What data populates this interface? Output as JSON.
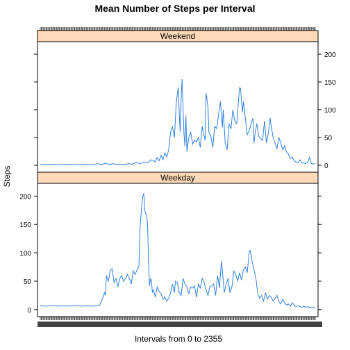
{
  "chart_data": {
    "type": "line",
    "title": "Mean Number of Steps per Interval",
    "xlabel": "Intervals from 0 to 2355",
    "ylabel": "Steps",
    "ylim": [
      -10,
      220
    ],
    "yticks": [
      0,
      50,
      100,
      150,
      200
    ],
    "x_categories": 288,
    "line_color": "#2f7fe6",
    "strip_color": "#ffdab9",
    "panels": [
      {
        "name": "Weekend",
        "points": [
          [
            0,
            1
          ],
          [
            4,
            2
          ],
          [
            8,
            1
          ],
          [
            12,
            2
          ],
          [
            16,
            1
          ],
          [
            20,
            1
          ],
          [
            24,
            2
          ],
          [
            28,
            1
          ],
          [
            32,
            2
          ],
          [
            36,
            1
          ],
          [
            40,
            1
          ],
          [
            45,
            2
          ],
          [
            50,
            1
          ],
          [
            56,
            1
          ],
          [
            60,
            3
          ],
          [
            64,
            1
          ],
          [
            68,
            4
          ],
          [
            72,
            1
          ],
          [
            76,
            3
          ],
          [
            80,
            1
          ],
          [
            84,
            2
          ],
          [
            88,
            1
          ],
          [
            92,
            3
          ],
          [
            96,
            2
          ],
          [
            100,
            5
          ],
          [
            104,
            3
          ],
          [
            108,
            6
          ],
          [
            112,
            4
          ],
          [
            116,
            10
          ],
          [
            120,
            6
          ],
          [
            122,
            14
          ],
          [
            124,
            8
          ],
          [
            126,
            18
          ],
          [
            128,
            10
          ],
          [
            130,
            22
          ],
          [
            132,
            15
          ],
          [
            134,
            28
          ],
          [
            136,
            60
          ],
          [
            138,
            70
          ],
          [
            140,
            50
          ],
          [
            142,
            115
          ],
          [
            144,
            140
          ],
          [
            145,
            95
          ],
          [
            146,
            60
          ],
          [
            147,
            120
          ],
          [
            148,
            155
          ],
          [
            149,
            100
          ],
          [
            150,
            55
          ],
          [
            151,
            35
          ],
          [
            152,
            90
          ],
          [
            153,
            25
          ],
          [
            155,
            50
          ],
          [
            157,
            60
          ],
          [
            159,
            38
          ],
          [
            161,
            45
          ],
          [
            163,
            42
          ],
          [
            165,
            50
          ],
          [
            167,
            32
          ],
          [
            169,
            70
          ],
          [
            170,
            60
          ],
          [
            172,
            45
          ],
          [
            173,
            130
          ],
          [
            175,
            105
          ],
          [
            176,
            60
          ],
          [
            178,
            52
          ],
          [
            180,
            32
          ],
          [
            182,
            70
          ],
          [
            184,
            66
          ],
          [
            186,
            90
          ],
          [
            188,
            115
          ],
          [
            190,
            68
          ],
          [
            191,
            100
          ],
          [
            193,
            40
          ],
          [
            195,
            28
          ],
          [
            197,
            75
          ],
          [
            199,
            65
          ],
          [
            201,
            100
          ],
          [
            203,
            80
          ],
          [
            205,
            75
          ],
          [
            207,
            120
          ],
          [
            208,
            140
          ],
          [
            209,
            138
          ],
          [
            211,
            95
          ],
          [
            212,
            115
          ],
          [
            214,
            85
          ],
          [
            216,
            55
          ],
          [
            218,
            62
          ],
          [
            220,
            75
          ],
          [
            222,
            85
          ],
          [
            223,
            40
          ],
          [
            224,
            55
          ],
          [
            226,
            75
          ],
          [
            228,
            52
          ],
          [
            230,
            48
          ],
          [
            232,
            45
          ],
          [
            234,
            80
          ],
          [
            236,
            40
          ],
          [
            238,
            58
          ],
          [
            240,
            85
          ],
          [
            241,
            70
          ],
          [
            243,
            50
          ],
          [
            245,
            40
          ],
          [
            247,
            30
          ],
          [
            249,
            50
          ],
          [
            251,
            40
          ],
          [
            253,
            28
          ],
          [
            255,
            35
          ],
          [
            257,
            24
          ],
          [
            259,
            20
          ],
          [
            261,
            12
          ],
          [
            263,
            15
          ],
          [
            265,
            8
          ],
          [
            267,
            6
          ],
          [
            269,
            4
          ],
          [
            271,
            10
          ],
          [
            273,
            4
          ],
          [
            275,
            4
          ],
          [
            277,
            3
          ],
          [
            279,
            5
          ],
          [
            281,
            14
          ],
          [
            283,
            3
          ],
          [
            285,
            2
          ],
          [
            287,
            4
          ]
        ]
      },
      {
        "name": "Weekday",
        "points": [
          [
            0,
            7
          ],
          [
            6,
            6
          ],
          [
            12,
            7
          ],
          [
            18,
            6
          ],
          [
            24,
            7
          ],
          [
            30,
            6
          ],
          [
            36,
            7
          ],
          [
            42,
            6
          ],
          [
            48,
            7
          ],
          [
            54,
            6
          ],
          [
            58,
            7
          ],
          [
            62,
            8
          ],
          [
            65,
            20
          ],
          [
            67,
            30
          ],
          [
            68,
            25
          ],
          [
            69,
            60
          ],
          [
            71,
            50
          ],
          [
            73,
            68
          ],
          [
            75,
            72
          ],
          [
            77,
            48
          ],
          [
            79,
            55
          ],
          [
            81,
            40
          ],
          [
            83,
            55
          ],
          [
            85,
            60
          ],
          [
            87,
            50
          ],
          [
            89,
            55
          ],
          [
            91,
            62
          ],
          [
            93,
            55
          ],
          [
            95,
            45
          ],
          [
            97,
            68
          ],
          [
            99,
            62
          ],
          [
            101,
            70
          ],
          [
            103,
            75
          ],
          [
            104,
            140
          ],
          [
            105,
            165
          ],
          [
            106,
            185
          ],
          [
            107,
            200
          ],
          [
            108,
            205
          ],
          [
            109,
            175
          ],
          [
            110,
            170
          ],
          [
            111,
            165
          ],
          [
            112,
            150
          ],
          [
            113,
            85
          ],
          [
            114,
            42
          ],
          [
            115,
            55
          ],
          [
            116,
            50
          ],
          [
            117,
            30
          ],
          [
            118,
            35
          ],
          [
            120,
            22
          ],
          [
            122,
            40
          ],
          [
            124,
            32
          ],
          [
            126,
            28
          ],
          [
            128,
            18
          ],
          [
            130,
            22
          ],
          [
            132,
            15
          ],
          [
            134,
            20
          ],
          [
            136,
            30
          ],
          [
            138,
            45
          ],
          [
            140,
            30
          ],
          [
            141,
            50
          ],
          [
            143,
            48
          ],
          [
            145,
            30
          ],
          [
            147,
            25
          ],
          [
            149,
            55
          ],
          [
            151,
            45
          ],
          [
            153,
            40
          ],
          [
            155,
            28
          ],
          [
            157,
            40
          ],
          [
            159,
            38
          ],
          [
            161,
            42
          ],
          [
            163,
            22
          ],
          [
            165,
            45
          ],
          [
            167,
            38
          ],
          [
            169,
            55
          ],
          [
            171,
            48
          ],
          [
            173,
            35
          ],
          [
            175,
            25
          ],
          [
            177,
            40
          ],
          [
            179,
            42
          ],
          [
            181,
            45
          ],
          [
            183,
            25
          ],
          [
            185,
            60
          ],
          [
            187,
            38
          ],
          [
            189,
            85
          ],
          [
            190,
            70
          ],
          [
            192,
            30
          ],
          [
            194,
            45
          ],
          [
            196,
            55
          ],
          [
            198,
            30
          ],
          [
            200,
            40
          ],
          [
            202,
            68
          ],
          [
            204,
            62
          ],
          [
            206,
            50
          ],
          [
            208,
            65
          ],
          [
            210,
            52
          ],
          [
            212,
            70
          ],
          [
            214,
            75
          ],
          [
            216,
            65
          ],
          [
            218,
            100
          ],
          [
            219,
            105
          ],
          [
            221,
            85
          ],
          [
            223,
            70
          ],
          [
            225,
            55
          ],
          [
            227,
            28
          ],
          [
            229,
            20
          ],
          [
            231,
            25
          ],
          [
            233,
            15
          ],
          [
            235,
            30
          ],
          [
            237,
            18
          ],
          [
            239,
            25
          ],
          [
            241,
            22
          ],
          [
            243,
            15
          ],
          [
            245,
            20
          ],
          [
            247,
            25
          ],
          [
            249,
            14
          ],
          [
            251,
            10
          ],
          [
            253,
            18
          ],
          [
            255,
            12
          ],
          [
            257,
            8
          ],
          [
            259,
            10
          ],
          [
            261,
            6
          ],
          [
            263,
            12
          ],
          [
            265,
            8
          ],
          [
            267,
            5
          ],
          [
            269,
            7
          ],
          [
            271,
            5
          ],
          [
            273,
            4
          ],
          [
            275,
            6
          ],
          [
            277,
            4
          ],
          [
            279,
            5
          ],
          [
            281,
            4
          ],
          [
            283,
            3
          ],
          [
            285,
            4
          ],
          [
            287,
            3
          ]
        ]
      }
    ]
  }
}
